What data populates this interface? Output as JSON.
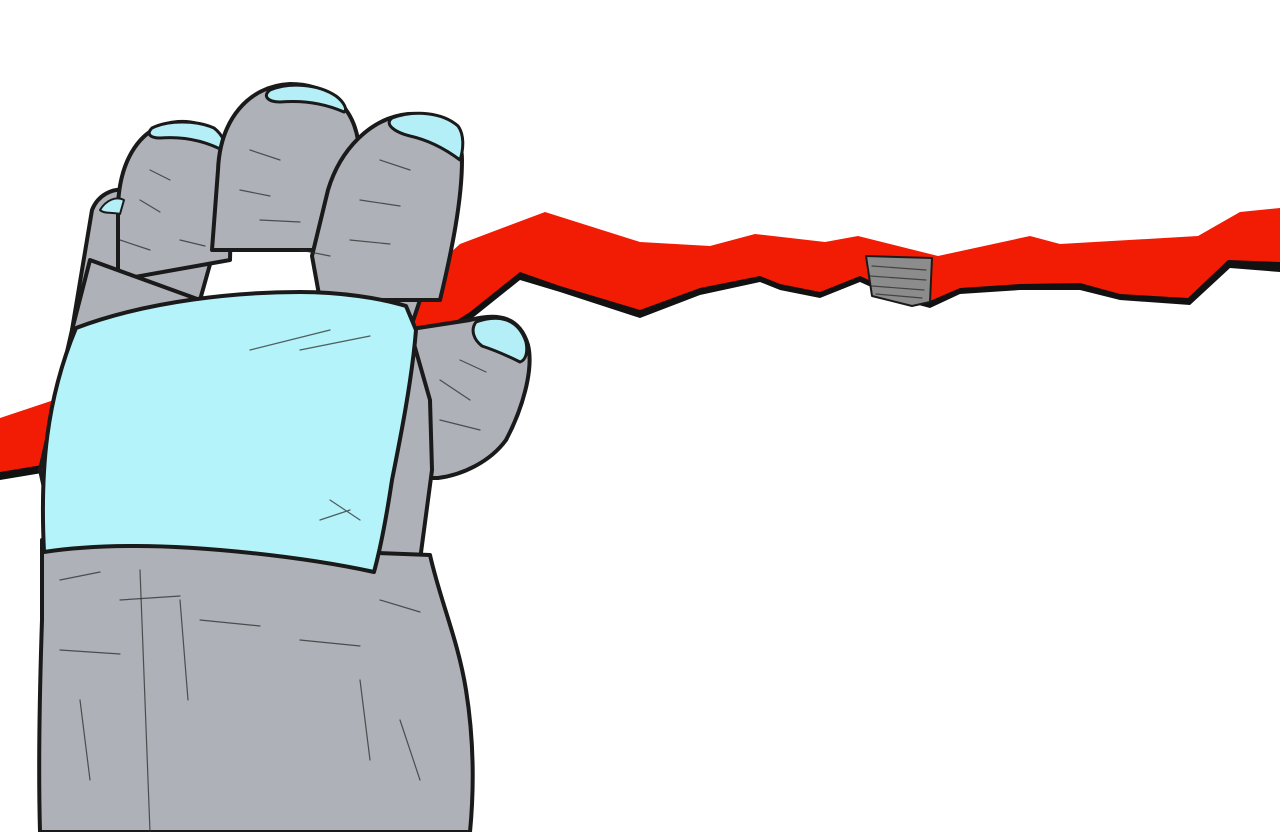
{
  "scene": {
    "description_tag": "illustration",
    "colors": {
      "background": "#ffffff",
      "strap": "#f21c05",
      "glove": "#aeb1b8",
      "fingertip": "#b4eff7",
      "cuff_patch": "#b4f3f9",
      "buckle": "#8c8c8c",
      "outline": "#1a1a1a"
    },
    "icons": [
      "gloved-hand",
      "red-strap",
      "strap-buckle"
    ]
  }
}
